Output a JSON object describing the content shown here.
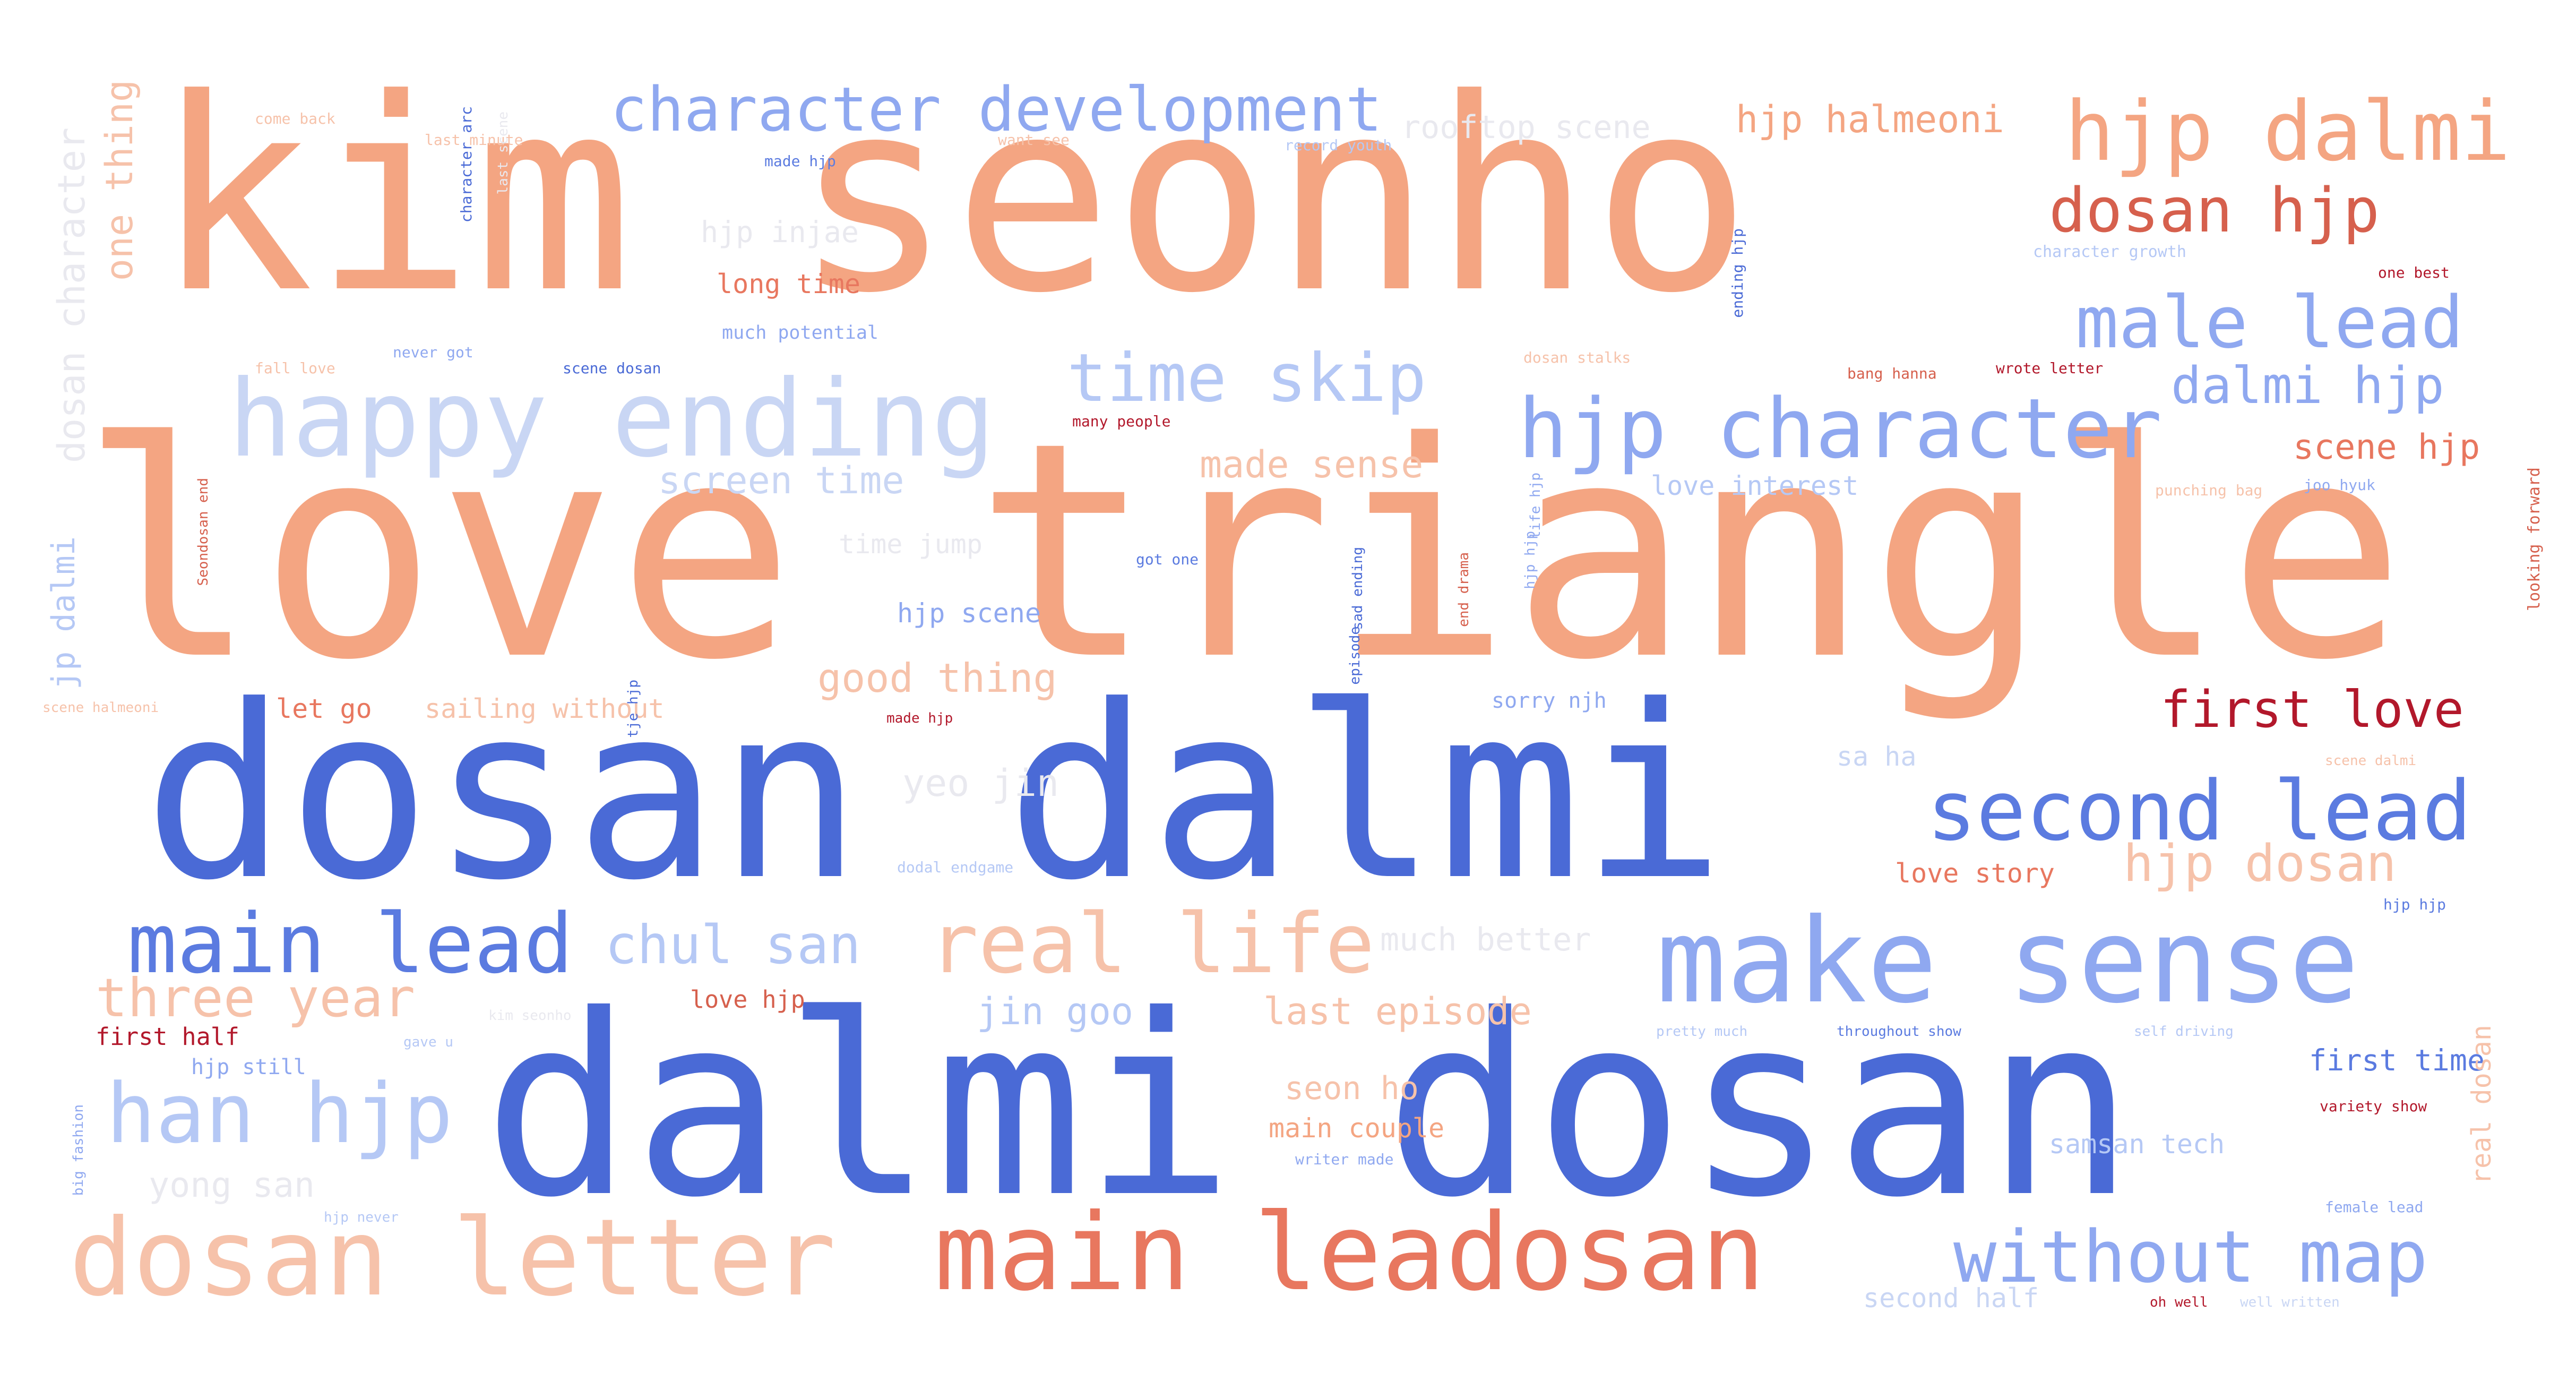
{
  "colors": {
    "background": "#ffffff",
    "palette": [
      "#f4a582",
      "#f7b79b",
      "#f6c2aa",
      "#e8775f",
      "#d6604d",
      "#b2182b",
      "#5b7be0",
      "#4a6ad6",
      "#8fa8f0",
      "#b5c8f5",
      "#c9d6f4",
      "#e9e9ef"
    ]
  },
  "words": [
    {
      "text": "kim seonho",
      "color": "#f4a582"
    },
    {
      "text": "love triangle",
      "color": "#f4a582"
    },
    {
      "text": "dosan dalmi",
      "color": "#4a6ad6"
    },
    {
      "text": "dalmi dosan",
      "color": "#4a6ad6"
    },
    {
      "text": "happy ending",
      "color": "#c9d6f4"
    },
    {
      "text": "make sense",
      "color": "#8fa8f0"
    },
    {
      "text": "main leadosan",
      "color": "#e8775f"
    },
    {
      "text": "dosan letter",
      "color": "#f6c2aa"
    },
    {
      "text": "hjp dalmi",
      "color": "#f4a582"
    },
    {
      "text": "character development",
      "color": "#8fa8f0"
    },
    {
      "text": "hjp character",
      "color": "#8fa8f0"
    },
    {
      "text": "second lead",
      "color": "#5b7be0"
    },
    {
      "text": "main lead",
      "color": "#5b7be0"
    },
    {
      "text": "real life",
      "color": "#f6c2aa"
    },
    {
      "text": "han hjp",
      "color": "#b5c8f5"
    },
    {
      "text": "without map",
      "color": "#8fa8f0"
    },
    {
      "text": "male lead",
      "color": "#8fa8f0"
    },
    {
      "text": "dosan hjp",
      "color": "#d6604d"
    },
    {
      "text": "time skip",
      "color": "#b5c8f5"
    },
    {
      "text": "dalmi hjp",
      "color": "#8fa8f0"
    },
    {
      "text": "first love",
      "color": "#b2182b"
    },
    {
      "text": "hjp dosan",
      "color": "#f6c2aa"
    },
    {
      "text": "chul san",
      "color": "#b5c8f5"
    },
    {
      "text": "three year",
      "color": "#f6c2aa"
    },
    {
      "text": "hjp halmeoni",
      "color": "#f4a582"
    },
    {
      "text": "rooftop scene",
      "color": "#e9e9ef"
    },
    {
      "text": "one thing",
      "color": "#f6c2aa"
    },
    {
      "text": "dosan character",
      "color": "#e9e9ef"
    },
    {
      "text": "screen time",
      "color": "#c9d6f4"
    },
    {
      "text": "made sense",
      "color": "#f6c2aa"
    },
    {
      "text": "love interest",
      "color": "#b5c8f5"
    },
    {
      "text": "scene hjp",
      "color": "#e8775f"
    },
    {
      "text": "good thing",
      "color": "#f6c2aa"
    },
    {
      "text": "hjp scene",
      "color": "#8fa8f0"
    },
    {
      "text": "time jump",
      "color": "#e9e9ef"
    },
    {
      "text": "yeo jin",
      "color": "#e9e9ef"
    },
    {
      "text": "sa ha",
      "color": "#c9d6f4"
    },
    {
      "text": "love story",
      "color": "#e8775f"
    },
    {
      "text": "much better",
      "color": "#e9e9ef"
    },
    {
      "text": "jin goo",
      "color": "#b5c8f5"
    },
    {
      "text": "last episode",
      "color": "#f6c2aa"
    },
    {
      "text": "seon ho",
      "color": "#f6c2aa"
    },
    {
      "text": "main couple",
      "color": "#f4a582"
    },
    {
      "text": "yong san",
      "color": "#e9e9ef"
    },
    {
      "text": "samsan tech",
      "color": "#b5c8f5"
    },
    {
      "text": "first time",
      "color": "#5b7be0"
    },
    {
      "text": "hjp injae",
      "color": "#e9e9ef"
    },
    {
      "text": "long time",
      "color": "#e8775f"
    },
    {
      "text": "much potential",
      "color": "#8fa8f0"
    },
    {
      "text": "let go",
      "color": "#e8775f"
    },
    {
      "text": "sailing without",
      "color": "#f6c2aa"
    },
    {
      "text": "love hjp",
      "color": "#d6604d"
    },
    {
      "text": "first half",
      "color": "#b2182b"
    },
    {
      "text": "hjp still",
      "color": "#8fa8f0"
    },
    {
      "text": "second half",
      "color": "#c9d6f4"
    },
    {
      "text": "jp dalmi",
      "color": "#b5c8f5"
    },
    {
      "text": "come back",
      "color": "#f6c2aa"
    },
    {
      "text": "last minute",
      "color": "#f6c2aa"
    },
    {
      "text": "made hjp",
      "color": "#5b7be0"
    },
    {
      "text": "want see",
      "color": "#f6c2aa"
    },
    {
      "text": "record youth",
      "color": "#b5c8f5"
    },
    {
      "text": "character growth",
      "color": "#b5c8f5"
    },
    {
      "text": "one best",
      "color": "#b2182b"
    },
    {
      "text": "fall love",
      "color": "#f6c2aa"
    },
    {
      "text": "never got",
      "color": "#8fa8f0"
    },
    {
      "text": "scene dosan",
      "color": "#4a6ad6"
    },
    {
      "text": "dosan stalks",
      "color": "#f6c2aa"
    },
    {
      "text": "bang hanna",
      "color": "#d6604d"
    },
    {
      "text": "wrote letter",
      "color": "#b2182b"
    },
    {
      "text": "many people",
      "color": "#b2182b"
    },
    {
      "text": "punching bag",
      "color": "#f6c2aa"
    },
    {
      "text": "joo hyuk",
      "color": "#8fa8f0"
    },
    {
      "text": "got one",
      "color": "#5b7be0"
    },
    {
      "text": "scene halmeoni",
      "color": "#f6c2aa"
    },
    {
      "text": "made hjp",
      "color": "#b2182b"
    },
    {
      "text": "sorry njh",
      "color": "#8fa8f0"
    },
    {
      "text": "dodal endgame",
      "color": "#b5c8f5"
    },
    {
      "text": "kim seonho",
      "color": "#e9e9ef"
    },
    {
      "text": "gave u",
      "color": "#b5c8f5"
    },
    {
      "text": "pretty much",
      "color": "#b5c8f5"
    },
    {
      "text": "throughout show",
      "color": "#5b7be0"
    },
    {
      "text": "self driving",
      "color": "#b5c8f5"
    },
    {
      "text": "variety show",
      "color": "#b2182b"
    },
    {
      "text": "writer made",
      "color": "#8fa8f0"
    },
    {
      "text": "female lead",
      "color": "#8fa8f0"
    },
    {
      "text": "hjp hjp",
      "color": "#5b7be0"
    },
    {
      "text": "scene dalmi",
      "color": "#f6c2aa"
    },
    {
      "text": "hjp never",
      "color": "#b5c8f5"
    },
    {
      "text": "oh well",
      "color": "#b2182b"
    },
    {
      "text": "well written",
      "color": "#c9d6f4"
    },
    {
      "text": "character arc",
      "color": "#4a6ad6"
    },
    {
      "text": "last scene",
      "color": "#e9e9ef"
    },
    {
      "text": "ending hjp",
      "color": "#4a6ad6"
    },
    {
      "text": "life hjp",
      "color": "#8fa8f0"
    },
    {
      "text": "hjp hjp",
      "color": "#8fa8f0"
    },
    {
      "text": "Seondosan end",
      "color": "#d6604d"
    },
    {
      "text": "sad ending",
      "color": "#4a6ad6"
    },
    {
      "text": "end drama",
      "color": "#d6604d"
    },
    {
      "text": "final episode",
      "color": "#4a6ad6"
    },
    {
      "text": "real dosan",
      "color": "#f6c2aa"
    },
    {
      "text": "looking forward",
      "color": "#d6604d"
    },
    {
      "text": "big fashion",
      "color": "#8fa8f0"
    },
    {
      "text": "tje hjp",
      "color": "#4a6ad6"
    }
  ]
}
